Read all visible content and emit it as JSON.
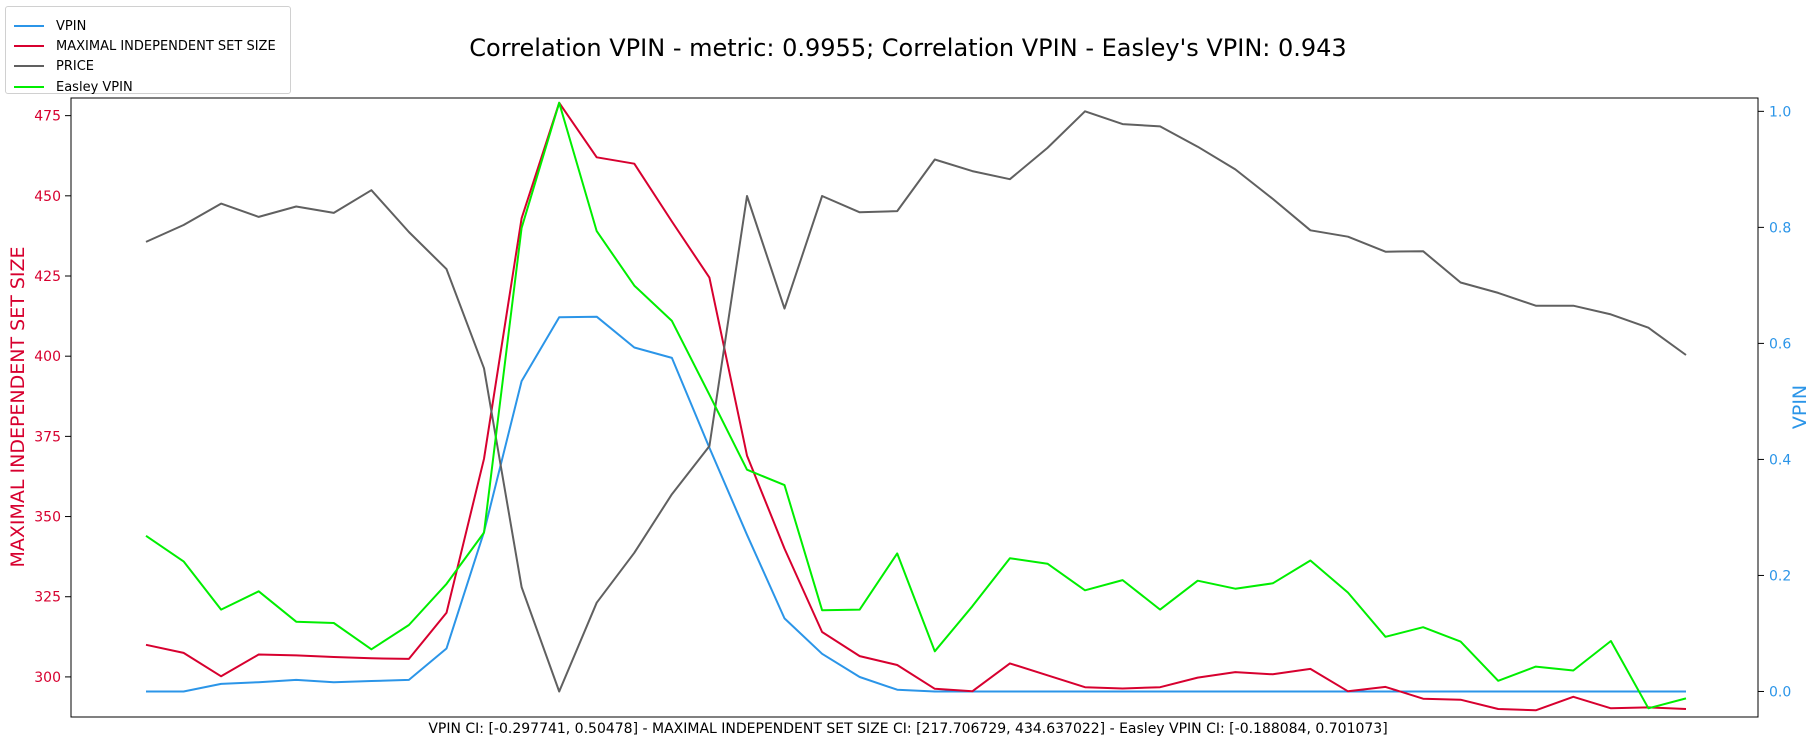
{
  "chart_data": {
    "type": "line",
    "title": "Correlation VPIN - metric: 0.9955; Correlation VPIN - Easley's VPIN: 0.943",
    "footer": "VPIN CI: [-0.297741, 0.50478] - MAXIMAL INDEPENDENT SET SIZE CI: [217.706729, 434.637022] - Easley VPIN CI: [-0.188084, 0.701073]",
    "left_axis": {
      "label": "MAXIMAL INDEPENDENT SET SIZE",
      "color": "#d7002f",
      "range": [
        287.5,
        480.5
      ],
      "ticks": [
        300,
        325,
        350,
        375,
        400,
        425,
        450,
        475
      ],
      "tick_labels": [
        "300",
        "325",
        "350",
        "375",
        "400",
        "425",
        "450",
        "475"
      ]
    },
    "right_axis": {
      "label": "VPIN",
      "color": "#2b95e8",
      "range": [
        -0.044,
        1.023
      ],
      "ticks": [
        0.0,
        0.2,
        0.4,
        0.6,
        0.8,
        1.0
      ],
      "tick_labels": [
        "0.0",
        "0.2",
        "0.4",
        "0.6",
        "0.8",
        "1.0"
      ]
    },
    "x": [
      0,
      1,
      2,
      3,
      4,
      5,
      6,
      7,
      8,
      9,
      10,
      11,
      12,
      13,
      14,
      15,
      16,
      17,
      18,
      19,
      20,
      21,
      22,
      23,
      24,
      25,
      26,
      27,
      28,
      29,
      30,
      31,
      32,
      33,
      34,
      35,
      36,
      37,
      38,
      39,
      40,
      41
    ],
    "grid": false,
    "legend_position": "top-left",
    "series": [
      {
        "name": "VPIN",
        "color": "#2b95e8",
        "axis": "right",
        "values": [
          0.0,
          0.0,
          0.013,
          0.016,
          0.02,
          0.016,
          0.018,
          0.02,
          0.074,
          0.275,
          0.535,
          0.645,
          0.646,
          0.593,
          0.575,
          0.42,
          0.27,
          0.126,
          0.065,
          0.025,
          0.003,
          0.0,
          0.0,
          0.0,
          0.0,
          0.0,
          0.0,
          0.0,
          0.0,
          0.0,
          0.0,
          0.0,
          0.0,
          0.0,
          0.0,
          0.0,
          0.0,
          0.0,
          0.0,
          0.0,
          0.0,
          0.0
        ]
      },
      {
        "name": "MAXIMAL INDEPENDENT SET SIZE",
        "color": "#d7002f",
        "axis": "left",
        "values": [
          310,
          307.5,
          300.2,
          307,
          306.7,
          306.2,
          305.8,
          305.6,
          320,
          368,
          443,
          479,
          462,
          460,
          442,
          424.5,
          369,
          340,
          314,
          306.5,
          303.7,
          296.3,
          295.5,
          304.2,
          300.5,
          296.8,
          296.4,
          296.8,
          299.8,
          301.5,
          300.8,
          302.5,
          295.5,
          296.9,
          293.2,
          292.9,
          290,
          289.6,
          293.8,
          290.2,
          290.5,
          290
        ]
      },
      {
        "name": "PRICE",
        "color": "#606060",
        "axis": "right",
        "values": [
          0.775,
          0.804,
          0.841,
          0.818,
          0.836,
          0.825,
          0.864,
          0.792,
          0.728,
          0.557,
          0.18,
          0.0,
          0.153,
          0.239,
          0.34,
          0.423,
          0.854,
          0.66,
          0.854,
          0.826,
          0.828,
          0.917,
          0.897,
          0.883,
          0.937,
          1.0,
          0.978,
          0.974,
          0.939,
          0.9,
          0.849,
          0.795,
          0.784,
          0.758,
          0.759,
          0.705,
          0.687,
          0.665,
          0.665,
          0.65,
          0.627,
          0.58
        ]
      },
      {
        "name": "Easley VPIN",
        "color": "#00ee00",
        "axis": "left",
        "values": [
          344,
          336,
          321,
          326.7,
          317.2,
          316.8,
          308.6,
          316.2,
          329,
          345,
          440,
          479,
          439,
          422,
          411,
          388,
          364.6,
          359.8,
          320.8,
          321,
          338.5,
          308,
          322,
          337,
          335.3,
          327,
          330.2,
          321,
          330,
          327.5,
          329.2,
          336.3,
          326.3,
          312.5,
          315.5,
          311,
          298.8,
          303.2,
          302,
          311.2,
          290.2,
          293.3
        ]
      }
    ]
  }
}
